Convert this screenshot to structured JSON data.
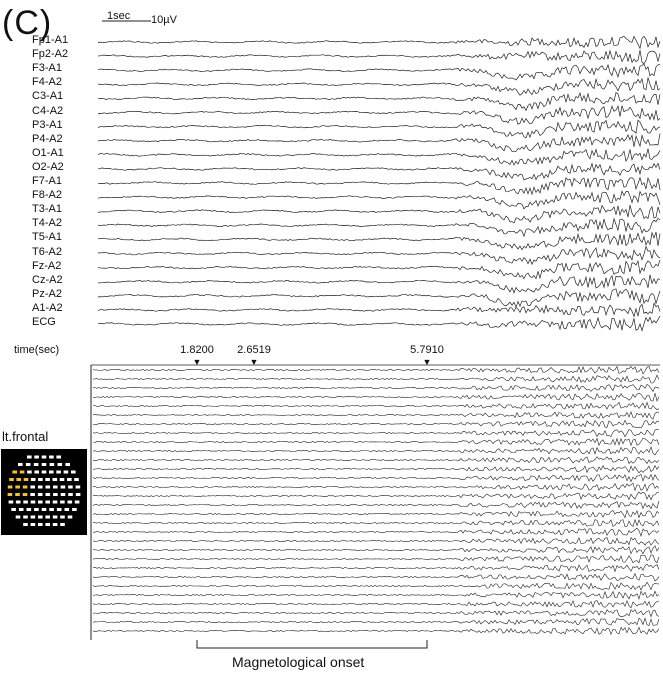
{
  "figure": {
    "panel_label": "(C)",
    "scale_time": "1sec",
    "scale_voltage": "10µV",
    "eeg_channels": [
      "Fp1-A1",
      "Fp2-A2",
      "F3-A1",
      "F4-A2",
      "C3-A1",
      "C4-A2",
      "P3-A1",
      "P4-A2",
      "O1-A1",
      "O2-A2",
      "F7-A1",
      "F8-A2",
      "T3-A1",
      "T4-A2",
      "T5-A1",
      "T6-A2",
      "Fz-A2",
      "Cz-A2",
      "Pz-A2",
      "A1-A2",
      "ECG"
    ],
    "time_axis_label": "time(sec)",
    "markers": [
      "1.8200",
      "2.6519",
      "5.7910"
    ],
    "meg_region_label": "lt.frontal",
    "onset_label": "Magnetological onset",
    "meg_trace_count": 30,
    "sensor_highlight_color": "#f2c230",
    "sensor_color": "#ffffff"
  }
}
